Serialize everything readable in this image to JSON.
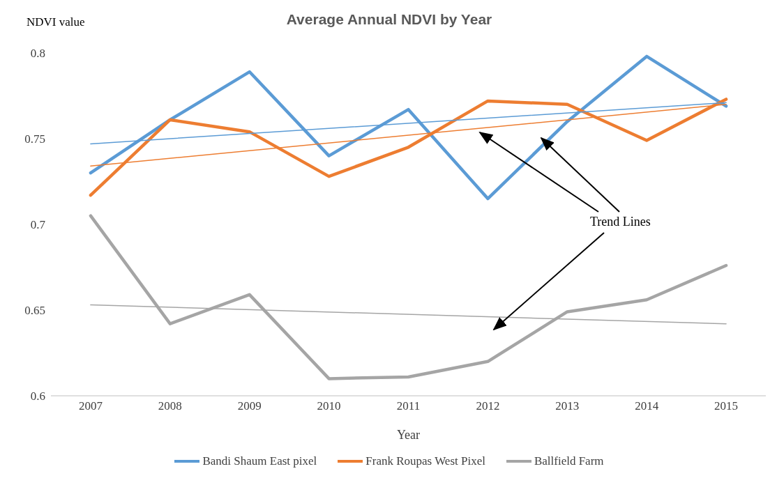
{
  "chart_data": {
    "type": "line",
    "title": "Average Annual NDVI by Year",
    "ylabel": "NDVI value",
    "xlabel": "Year",
    "categories": [
      "2007",
      "2008",
      "2009",
      "2010",
      "2011",
      "2012",
      "2013",
      "2014",
      "2015"
    ],
    "series": [
      {
        "name": "Bandi Shaum East pixel",
        "color": "#5b9bd5",
        "values": [
          0.73,
          0.761,
          0.789,
          0.74,
          0.767,
          0.715,
          0.76,
          0.798,
          0.769
        ]
      },
      {
        "name": "Frank Roupas West Pixel",
        "color": "#ed7d31",
        "values": [
          0.717,
          0.761,
          0.754,
          0.728,
          0.745,
          0.772,
          0.77,
          0.749,
          0.773
        ]
      },
      {
        "name": "Ballfield Farm",
        "color": "#a5a5a5",
        "values": [
          0.705,
          0.642,
          0.659,
          0.61,
          0.611,
          0.62,
          0.649,
          0.656,
          0.676
        ]
      },
      {
        "type": "line",
        "color": "#5b9bd5",
        "values": [
          0.747,
          null,
          null,
          null,
          null,
          null,
          null,
          null,
          0.771
        ]
      },
      {
        "type": "line",
        "color": "#ed7d31",
        "values": [
          0.734,
          null,
          null,
          null,
          null,
          null,
          null,
          null,
          0.77
        ]
      },
      {
        "type": "line",
        "color": "#a5a5a5",
        "values": [
          0.653,
          null,
          null,
          null,
          null,
          null,
          null,
          null,
          0.642
        ]
      }
    ],
    "ylim": [
      0.6,
      0.8
    ],
    "yticks": [
      0.6,
      0.65,
      0.7,
      0.75,
      0.8
    ],
    "grid": false,
    "legend": "bottom",
    "marker": "none",
    "line_style": "solid",
    "annotations": [
      "Trend Lines"
    ]
  }
}
